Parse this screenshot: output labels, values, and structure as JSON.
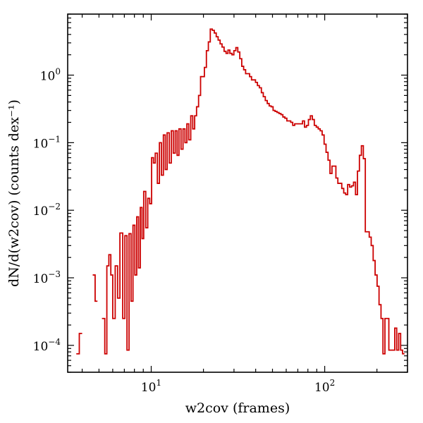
{
  "chart_data": {
    "type": "histogram-step",
    "xscale": "log",
    "yscale": "log",
    "xlim": [
      3.3,
      300
    ],
    "ylim": [
      4e-05,
      8
    ],
    "xlabel": "w2cov (frames)",
    "ylabel": "dN/d(w2cov) (counts dex⁻¹)",
    "x_ticks": [
      {
        "value": 10,
        "label": "10",
        "exp": "1"
      },
      {
        "value": 100,
        "label": "10",
        "exp": "2"
      }
    ],
    "y_ticks": [
      {
        "value": 0.0001,
        "label": "10",
        "exp": "−4"
      },
      {
        "value": 0.001,
        "label": "10",
        "exp": "−3"
      },
      {
        "value": 0.01,
        "label": "10",
        "exp": "−2"
      },
      {
        "value": 0.1,
        "label": "10",
        "exp": "−1"
      },
      {
        "value": 1,
        "label": "10",
        "exp": "0"
      }
    ],
    "series": [
      {
        "color": "#cc0000",
        "segments": [
          [
            [
              3.7,
              7.5e-05
            ],
            [
              3.85,
              0.00015
            ],
            [
              4.0,
              null
            ],
            [
              4.6,
              0.0011
            ],
            [
              4.75,
              0.00045
            ],
            [
              4.9,
              null
            ]
          ],
          [
            [
              5.2,
              0.00025
            ],
            [
              5.4,
              7.5e-05
            ],
            [
              5.55,
              0.0015
            ],
            [
              5.7,
              0.0022
            ],
            [
              5.85,
              0.0011
            ],
            [
              6.0,
              0.00025
            ],
            [
              6.2,
              0.0015
            ],
            [
              6.4,
              0.0005
            ],
            [
              6.6,
              0.0046
            ],
            [
              6.85,
              0.00025
            ],
            [
              7.05,
              0.0042
            ],
            [
              7.25,
              8.5e-05
            ],
            [
              7.45,
              0.0045
            ],
            [
              7.65,
              0.00045
            ],
            [
              7.85,
              0.006
            ],
            [
              8.05,
              0.0011
            ],
            [
              8.25,
              0.008
            ],
            [
              8.45,
              0.0014
            ],
            [
              8.65,
              0.011
            ],
            [
              8.85,
              0.0038
            ],
            [
              9.05,
              0.019
            ],
            [
              9.3,
              0.0055
            ],
            [
              9.55,
              0.015
            ],
            [
              9.8,
              0.0125
            ],
            [
              10.05,
              0.06
            ],
            [
              10.3,
              0.05
            ],
            [
              10.55,
              0.07
            ],
            [
              10.85,
              0.025
            ],
            [
              11.15,
              0.1
            ],
            [
              11.45,
              0.033
            ],
            [
              11.75,
              0.13
            ],
            [
              12.05,
              0.04
            ],
            [
              12.35,
              0.14
            ],
            [
              12.7,
              0.05
            ],
            [
              13.05,
              0.15
            ],
            [
              13.4,
              0.07
            ],
            [
              13.75,
              0.15
            ],
            [
              14.1,
              0.065
            ],
            [
              14.45,
              0.16
            ],
            [
              14.85,
              0.08
            ],
            [
              15.25,
              0.16
            ],
            [
              15.65,
              0.1
            ],
            [
              16.05,
              0.19
            ],
            [
              16.45,
              0.11
            ],
            [
              16.9,
              0.25
            ],
            [
              17.35,
              0.16
            ],
            [
              17.8,
              0.25
            ],
            [
              18.25,
              0.34
            ],
            [
              18.75,
              0.5
            ],
            [
              19.25,
              0.95
            ],
            [
              19.75,
              0.95
            ],
            [
              20.25,
              1.3
            ],
            [
              20.8,
              2.3
            ],
            [
              21.35,
              3.1
            ],
            [
              21.9,
              4.8
            ],
            [
              22.5,
              4.6
            ],
            [
              23.1,
              4.2
            ],
            [
              23.7,
              3.7
            ],
            [
              24.3,
              3.3
            ],
            [
              24.95,
              2.9
            ],
            [
              25.6,
              2.6
            ],
            [
              26.3,
              2.25
            ],
            [
              27.0,
              2.1
            ],
            [
              27.7,
              2.35
            ],
            [
              28.4,
              2.1
            ],
            [
              29.2,
              2.0
            ],
            [
              29.95,
              2.3
            ],
            [
              30.75,
              2.55
            ],
            [
              31.55,
              2.2
            ],
            [
              32.4,
              1.75
            ],
            [
              33.25,
              1.35
            ],
            [
              34.1,
              1.2
            ],
            [
              35.0,
              1.05
            ],
            [
              35.95,
              1.05
            ],
            [
              36.9,
              0.95
            ],
            [
              37.85,
              0.85
            ],
            [
              38.85,
              0.85
            ],
            [
              39.9,
              0.78
            ],
            [
              40.95,
              0.7
            ],
            [
              42.0,
              0.65
            ],
            [
              43.15,
              0.55
            ],
            [
              44.25,
              0.48
            ],
            [
              45.45,
              0.42
            ],
            [
              46.65,
              0.38
            ],
            [
              47.85,
              0.35
            ],
            [
              49.1,
              0.34
            ],
            [
              50.4,
              0.3
            ],
            [
              51.75,
              0.29
            ],
            [
              53.1,
              0.28
            ],
            [
              54.5,
              0.27
            ],
            [
              55.95,
              0.26
            ],
            [
              57.4,
              0.24
            ],
            [
              58.95,
              0.23
            ],
            [
              60.5,
              0.21
            ],
            [
              62.1,
              0.21
            ],
            [
              63.7,
              0.2
            ],
            [
              65.4,
              0.18
            ],
            [
              67.15,
              0.19
            ],
            [
              68.9,
              0.19
            ],
            [
              70.7,
              0.19
            ],
            [
              72.6,
              0.19
            ],
            [
              74.5,
              0.21
            ],
            [
              76.45,
              0.17
            ],
            [
              78.5,
              0.18
            ],
            [
              80.55,
              0.22
            ],
            [
              82.65,
              0.25
            ],
            [
              84.85,
              0.22
            ],
            [
              87.1,
              0.18
            ],
            [
              89.4,
              0.17
            ],
            [
              91.75,
              0.16
            ],
            [
              94.15,
              0.15
            ],
            [
              96.65,
              0.13
            ],
            [
              99.2,
              0.095
            ],
            [
              101.8,
              0.072
            ],
            [
              104.5,
              0.055
            ],
            [
              107.25,
              0.035
            ],
            [
              110.1,
              0.045
            ],
            [
              113.0,
              0.045
            ],
            [
              116.0,
              0.03
            ],
            [
              119.05,
              0.025
            ],
            [
              122.2,
              0.025
            ],
            [
              125.4,
              0.021
            ],
            [
              128.7,
              0.018
            ],
            [
              132.1,
              0.017
            ],
            [
              135.6,
              0.024
            ],
            [
              139.2,
              0.022
            ],
            [
              142.85,
              0.023
            ],
            [
              146.6,
              0.026
            ],
            [
              150.5,
              0.017
            ],
            [
              154.45,
              0.038
            ],
            [
              158.5,
              0.065
            ],
            [
              162.7,
              0.09
            ],
            [
              167.0,
              0.058
            ],
            [
              171.4,
              0.0048
            ],
            [
              175.9,
              0.0048
            ],
            [
              180.55,
              0.004
            ],
            [
              185.3,
              0.003
            ],
            [
              190.2,
              0.0018
            ],
            [
              195.2,
              0.0011
            ],
            [
              200.4,
              0.00075
            ],
            [
              205.65,
              0.0004
            ],
            [
              211.1,
              0.00025
            ],
            [
              216.65,
              7.5e-05
            ],
            [
              222.4,
              0.00025
            ],
            [
              228.25,
              0.00025
            ],
            [
              234.25,
              8.5e-05
            ],
            [
              240.45,
              8.5e-05
            ],
            [
              246.75,
              8.5e-05
            ],
            [
              253.3,
              0.00018
            ],
            [
              260.0,
              8.5e-05
            ],
            [
              266.85,
              0.00015
            ],
            [
              273.9,
              8.5e-05
            ],
            [
              281.1,
              7.5e-05
            ],
            [
              288.5,
              null
            ]
          ]
        ]
      }
    ]
  }
}
